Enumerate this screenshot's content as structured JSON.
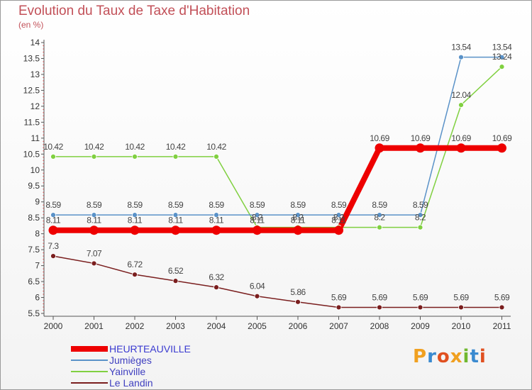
{
  "chart_title": "Evolution du Taux de Taxe d'Habitation",
  "chart_subtitle": "(en %)",
  "chart_data": {
    "type": "line",
    "title": "Evolution du Taux de Taxe d'Habitation",
    "ylabel": "(en %)",
    "xlabel": "",
    "x": [
      "2000",
      "2001",
      "2002",
      "2003",
      "2004",
      "2005",
      "2006",
      "2007",
      "2008",
      "2009",
      "2010",
      "2011"
    ],
    "ylim": [
      5.5,
      14
    ],
    "yticks": [
      "5.5",
      "6",
      "6.5",
      "7",
      "7.5",
      "8",
      "8.5",
      "9",
      "9.5",
      "10",
      "10.5",
      "11",
      "11.5",
      "12",
      "12.5",
      "13",
      "13.5",
      "14"
    ],
    "series": [
      {
        "name": "HEURTEAUVILLE",
        "color": "#ee0000",
        "values": [
          8.11,
          8.11,
          8.11,
          8.11,
          8.11,
          8.11,
          8.11,
          8.11,
          10.69,
          10.69,
          10.69,
          10.69
        ],
        "labels": [
          "8.11",
          "8.11",
          "8.11",
          "8.11",
          "8.11",
          "8.11",
          "8.11",
          "8.11",
          "10.69",
          "10.69",
          "10.69",
          "10.69"
        ]
      },
      {
        "name": "Jumièges",
        "color": "#5a92c8",
        "values": [
          8.59,
          8.59,
          8.59,
          8.59,
          8.59,
          8.59,
          8.59,
          8.59,
          8.59,
          8.59,
          13.54,
          13.54
        ],
        "labels": [
          "8.59",
          "8.59",
          "8.59",
          "8.59",
          "8.59",
          "8.59",
          "8.59",
          "8.59",
          "8.59",
          "8.59",
          "13.54",
          "13.54"
        ]
      },
      {
        "name": "Yainville",
        "color": "#80d040",
        "values": [
          10.42,
          10.42,
          10.42,
          10.42,
          10.42,
          8.2,
          8.2,
          8.2,
          8.2,
          8.2,
          12.04,
          13.24
        ],
        "labels": [
          "10.42",
          "10.42",
          "10.42",
          "10.42",
          "10.42",
          "8.2",
          "8.2",
          "8.2",
          "8.2",
          "8.2",
          "12.04",
          "13.24"
        ]
      },
      {
        "name": "Le Landin",
        "color": "#7a1e1e",
        "values": [
          7.3,
          7.07,
          6.72,
          6.52,
          6.32,
          6.04,
          5.86,
          5.69,
          5.69,
          5.69,
          5.69,
          5.69
        ],
        "labels": [
          "7.3",
          "7.07",
          "6.72",
          "6.52",
          "6.32",
          "6.04",
          "5.86",
          "5.69",
          "5.69",
          "5.69",
          "5.69",
          "5.69"
        ]
      }
    ],
    "grid": false,
    "legend": "bottom-left"
  },
  "logo": {
    "letters": [
      "P",
      "r",
      "o",
      "x",
      "i",
      "t",
      "i"
    ],
    "colors": [
      "#f0a020",
      "#3a8ad0",
      "#e05020",
      "#f0a020",
      "#70b830",
      "#3a8ad0",
      "#e05020"
    ]
  }
}
